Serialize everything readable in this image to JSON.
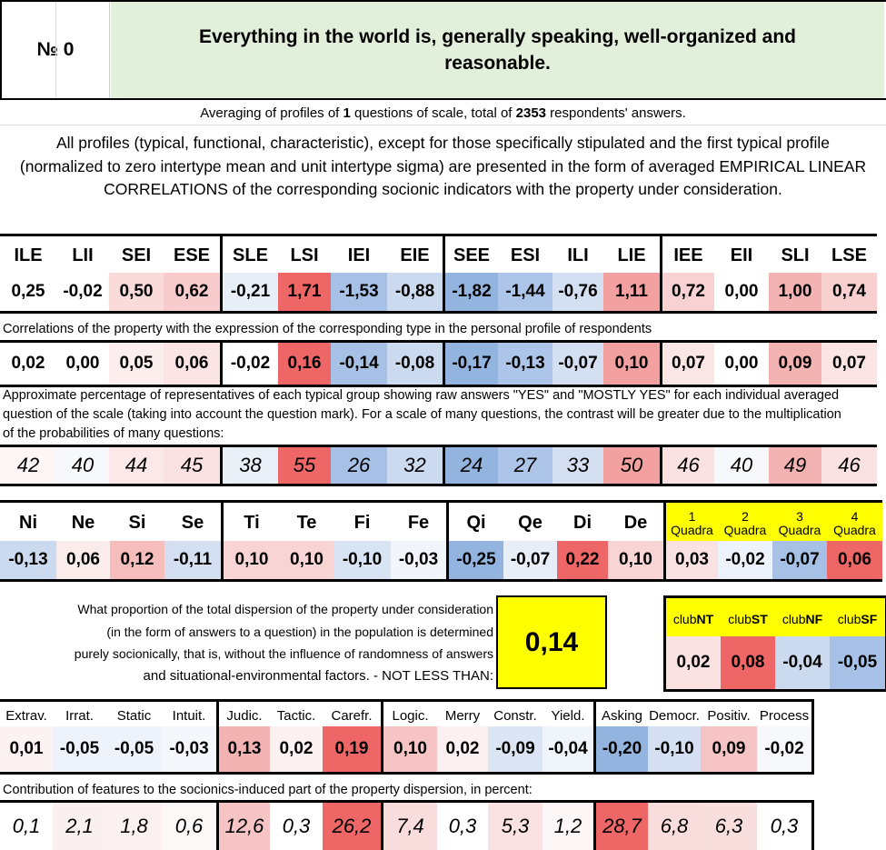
{
  "header": {
    "number_label": "№ 0",
    "title": "Everything in the world is, generally speaking, well-organized and reasonable."
  },
  "intro": {
    "averaging_prefix": "Averaging of profiles of ",
    "questions_count": "1",
    "averaging_mid": " questions of scale, total of ",
    "respondents_count": "2353",
    "averaging_suffix": " respondents' answers.",
    "description": "All profiles (typical, functional, characteristic), except for those specifically stipulated and the first typical profile (normalized to zero intertype mean and unit intertype sigma) are presented in the form of averaged EMPIRICAL LINEAR CORRELATIONS of the corresponding socionic indicators with the property under consideration."
  },
  "types": {
    "labels": [
      "ILE",
      "LII",
      "SEI",
      "ESE",
      "SLE",
      "LSI",
      "IEI",
      "EIE",
      "SEE",
      "ESI",
      "ILI",
      "LIE",
      "IEE",
      "EII",
      "SLI",
      "LSE"
    ],
    "profile": [
      "0,25",
      "-0,02",
      "0,50",
      "0,62",
      "-0,21",
      "1,71",
      "-1,53",
      "-0,88",
      "-1,82",
      "-1,44",
      "-0,76",
      "1,11",
      "0,72",
      "0,00",
      "1,00",
      "0,74"
    ],
    "profile_colors": [
      "#ffffff",
      "#ffffff",
      "#fbdada",
      "#f8cccc",
      "#e8eef8",
      "#ee6666",
      "#a6c0e6",
      "#ccdaf0",
      "#94b4e0",
      "#adc5e8",
      "#d4e0f2",
      "#f2a0a0",
      "#f8d2d2",
      "#ffffff",
      "#f4b3b3",
      "#f8d0d0"
    ],
    "corr_note": "Correlations of the property with the expression of the corresponding type in the personal profile of respondents",
    "corr": [
      "0,02",
      "0,00",
      "0,05",
      "0,06",
      "-0,02",
      "0,16",
      "-0,14",
      "-0,08",
      "-0,17",
      "-0,13",
      "-0,07",
      "0,10",
      "0,07",
      "0,00",
      "0,09",
      "0,07"
    ],
    "corr_colors": [
      "#ffffff",
      "#ffffff",
      "#fdeeee",
      "#fbe4e4",
      "#ffffff",
      "#ee6666",
      "#a6c0e6",
      "#ccdaf0",
      "#94b4e0",
      "#adc5e8",
      "#d4e0f2",
      "#f2a0a0",
      "#fbe6e6",
      "#ffffff",
      "#f4b3b3",
      "#fbe4e4"
    ],
    "pct_note": "Approximate percentage of representatives of each typical group showing raw answers \"YES\" and \"MOSTLY YES\" for each individual averaged question of the scale (taking into account the question mark). For a scale of many questions, the contrast will be greater due to the multiplication of the probabilities of many questions:",
    "pct": [
      "42",
      "40",
      "44",
      "45",
      "38",
      "55",
      "26",
      "32",
      "24",
      "27",
      "33",
      "50",
      "46",
      "40",
      "49",
      "46"
    ],
    "pct_colors": [
      "#fef5f5",
      "#f6f8fc",
      "#fce8e8",
      "#fbe2e2",
      "#eaf0f8",
      "#ee6666",
      "#a6c0e6",
      "#ccdaf0",
      "#94b4e0",
      "#adc5e8",
      "#d4e0f2",
      "#f2a0a0",
      "#fbe2e2",
      "#f6f8fc",
      "#f4b3b3",
      "#fbe2e2"
    ]
  },
  "functions": {
    "labels": [
      "Ni",
      "Ne",
      "Si",
      "Se",
      "Ti",
      "Te",
      "Fi",
      "Fe",
      "Qi",
      "Qe",
      "Di",
      "De"
    ],
    "values": [
      "-0,13",
      "0,06",
      "0,12",
      "-0,11",
      "0,10",
      "0,10",
      "-0,10",
      "-0,03",
      "-0,25",
      "-0,07",
      "0,22",
      "0,10"
    ],
    "colors": [
      "#ccdaf0",
      "#fbecec",
      "#f6bdbd",
      "#d4e0f2",
      "#f9d4d4",
      "#f9d4d4",
      "#d8e3f3",
      "#f2f5fb",
      "#94b4e0",
      "#e8eef8",
      "#ee6666",
      "#f9d4d4"
    ],
    "quadra_labels": [
      {
        "num": "1",
        "word": "Quadra"
      },
      {
        "num": "2",
        "word": "Quadra"
      },
      {
        "num": "3",
        "word": "Quadra"
      },
      {
        "num": "4",
        "word": "Quadra"
      }
    ],
    "quadra_values": [
      "0,03",
      "-0,02",
      "-0,07",
      "0,06"
    ],
    "quadra_colors": [
      "#fbe2e2",
      "#eef2fa",
      "#a6c0e6",
      "#ee6666"
    ],
    "highlight": "#ffff00"
  },
  "dispersion": {
    "lines": [
      "What proportion of the total dispersion of the property under consideration",
      "(in the form of answers to a question) in the population is determined",
      "purely socionically, that is, without the influence of randomness of answers",
      "and situational-environmental factors. - NOT LESS THAN:"
    ],
    "value": "0,14",
    "clubs": [
      {
        "prefix": "club",
        "bold": "NT"
      },
      {
        "prefix": "club",
        "bold": "ST"
      },
      {
        "prefix": "club",
        "bold": "NF"
      },
      {
        "prefix": "club",
        "bold": "SF"
      }
    ],
    "club_values": [
      "0,02",
      "0,08",
      "-0,04",
      "-0,05"
    ],
    "club_colors": [
      "#fbe2e2",
      "#ee6666",
      "#ccdaf0",
      "#a6c0e6"
    ]
  },
  "traits": {
    "labels": [
      "Extrav.",
      "Irrat.",
      "Static",
      "Intuit.",
      "Judic.",
      "Tactic.",
      "Carefr.",
      "Logic.",
      "Merry",
      "Constr.",
      "Yield.",
      "Asking",
      "Democr.",
      "Positiv.",
      "Process"
    ],
    "values": [
      "0,01",
      "-0,05",
      "-0,05",
      "-0,03",
      "0,13",
      "0,02",
      "0,19",
      "0,10",
      "0,02",
      "-0,09",
      "-0,04",
      "-0,20",
      "-0,10",
      "0,09",
      "-0,02"
    ],
    "colors": [
      "#fdf2f2",
      "#eef2fa",
      "#eef2fa",
      "#f4f7fc",
      "#f4b3b3",
      "#fdf0f0",
      "#ee6666",
      "#f6c4c4",
      "#fdf0f0",
      "#dbe5f4",
      "#f0f4fb",
      "#94b4e0",
      "#d4e0f2",
      "#f6c4c4",
      "#f6f8fc"
    ],
    "contrib_note": "Contribution of features to the socionics-induced part of the property dispersion, in percent:",
    "contrib": [
      "0,1",
      "2,1",
      "1,8",
      "0,6",
      "12,6",
      "0,3",
      "26,2",
      "7,4",
      "0,3",
      "5,3",
      "1,2",
      "28,7",
      "6,8",
      "6,3",
      "0,3"
    ],
    "contrib_colors": [
      "#ffffff",
      "#fbf0f0",
      "#fbf1f1",
      "#fdf8f8",
      "#f6c4c4",
      "#ffffff",
      "#ee6666",
      "#f9dcdc",
      "#ffffff",
      "#fae2e2",
      "#fdf6f6",
      "#ee6666",
      "#f9dcdc",
      "#f9dede",
      "#ffffff"
    ]
  },
  "colors": {
    "title_bg": "#e2efda",
    "yellow": "#ffff00"
  }
}
